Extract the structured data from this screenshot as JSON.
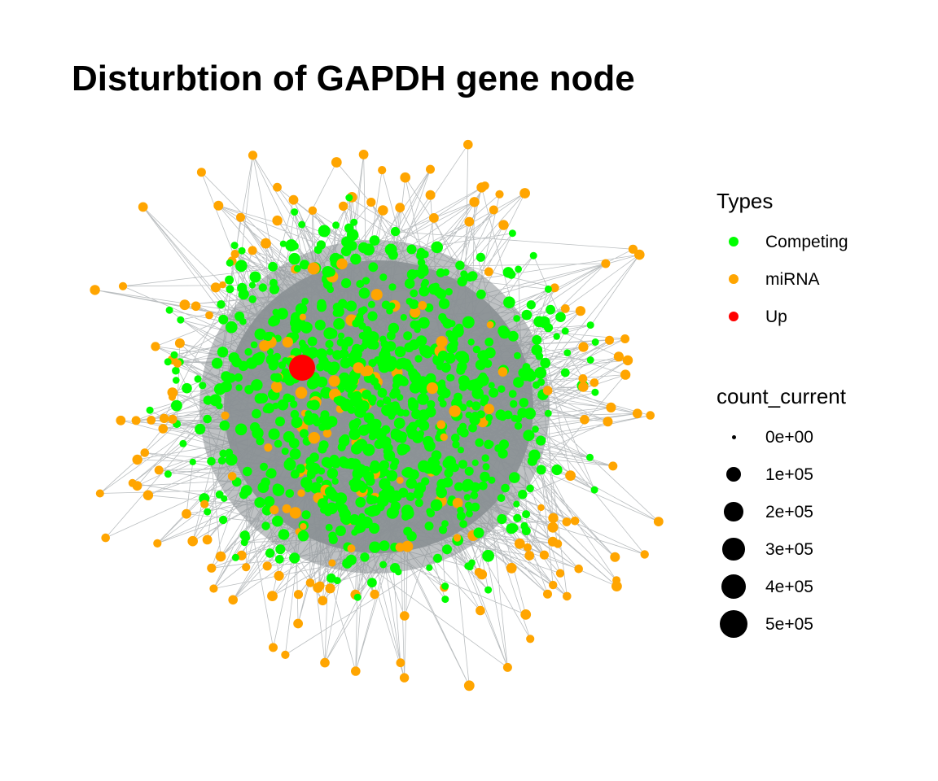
{
  "title": "Disturbtion of GAPDH gene node",
  "colors": {
    "edge": "#8c9296",
    "hull": "#8a9093",
    "Competing": "#00ff00",
    "miRNA": "#ffa500",
    "Up": "#ff0000",
    "size_key": "#000000"
  },
  "legend": {
    "types": {
      "title": "Types",
      "items": [
        {
          "label": "Competing",
          "color": "#00ff00"
        },
        {
          "label": "miRNA",
          "color": "#ffa500"
        },
        {
          "label": "Up",
          "color": "#ff0000"
        }
      ]
    },
    "size": {
      "title": "count_current",
      "items": [
        {
          "label": "0e+00",
          "value": 0
        },
        {
          "label": "1e+05",
          "value": 100000
        },
        {
          "label": "2e+05",
          "value": 200000
        },
        {
          "label": "3e+05",
          "value": 300000
        },
        {
          "label": "4e+05",
          "value": 400000
        },
        {
          "label": "5e+05",
          "value": 500000
        }
      ]
    }
  },
  "network": {
    "layout": "force-directed",
    "highlighted_node": {
      "type": "Up",
      "count_current": 500000
    }
  }
}
